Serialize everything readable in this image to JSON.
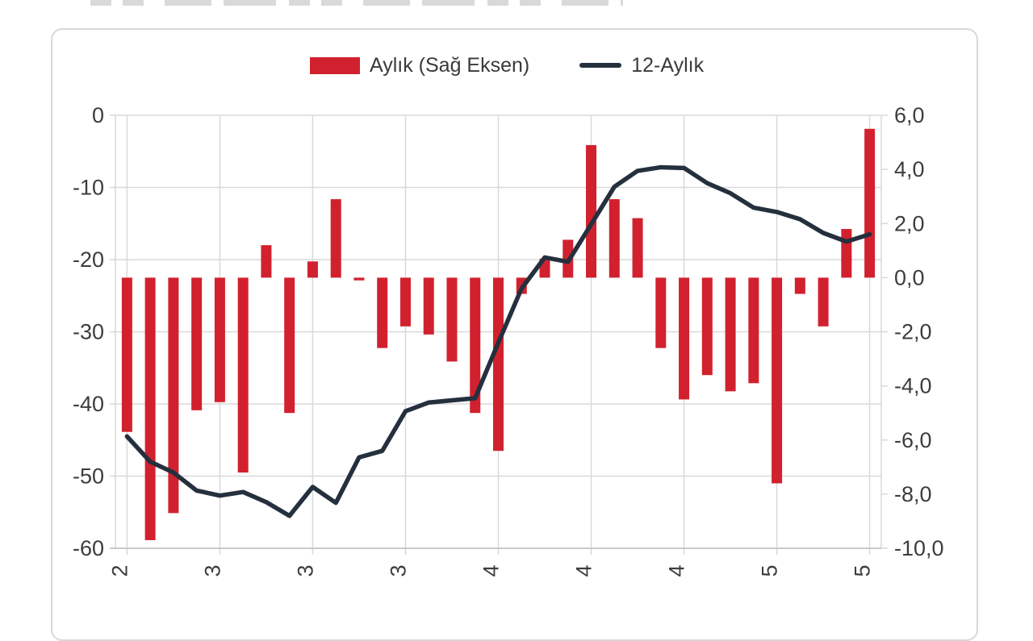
{
  "legend": {
    "bar_series_label": "Aylık (Sağ Eksen)",
    "line_series_label": "12-Aylık"
  },
  "colors": {
    "bar": "#d2212e",
    "line": "#25303e",
    "grid": "#d9d9d9",
    "axis_line": "#bfbfbf",
    "text": "#3d3d3d",
    "card_border": "#d8d8d8"
  },
  "chart_data": {
    "type": "bar+line",
    "months_count": 33,
    "title": "",
    "left_axis": {
      "ticks": [
        "0",
        "-10",
        "-20",
        "-30",
        "-40",
        "-50",
        "-60"
      ],
      "max": 0,
      "min": -60
    },
    "right_axis": {
      "ticks": [
        "6,0",
        "4,0",
        "2,0",
        "0,0",
        "-2,0",
        "-4,0",
        "-6,0",
        "-8,0",
        "-10,0"
      ],
      "max": 6,
      "min": -10
    },
    "x_axis": {
      "tick_every_n_bars": 4,
      "visible_tick_labels": [
        "2",
        "3",
        "3",
        "3",
        "4",
        "4",
        "4",
        "5",
        "5"
      ]
    },
    "series": [
      {
        "name": "Aylık (Sağ Eksen)",
        "type": "bar",
        "axis": "right",
        "values": [
          -5.7,
          -9.7,
          -8.7,
          -4.9,
          -4.6,
          -7.2,
          1.2,
          -5.0,
          0.6,
          2.9,
          -0.1,
          -2.6,
          -1.8,
          -2.1,
          -3.1,
          -5.0,
          -6.4,
          -0.6,
          0.7,
          1.4,
          4.9,
          2.9,
          2.2,
          -2.6,
          -4.5,
          -3.6,
          -4.2,
          -3.9,
          -7.6,
          -0.6,
          -1.8,
          1.8,
          5.5
        ]
      },
      {
        "name": "12-Aylık",
        "type": "line",
        "axis": "left",
        "values": [
          -44.5,
          -48.0,
          -49.5,
          -52.0,
          -52.7,
          -52.2,
          -53.6,
          -55.5,
          -51.5,
          -53.7,
          -47.4,
          -46.5,
          -41.0,
          -39.8,
          -39.5,
          -39.2,
          -31.5,
          -24.0,
          -19.7,
          -20.3,
          -15.1,
          -9.9,
          -7.7,
          -7.2,
          -7.3,
          -9.4,
          -10.8,
          -12.8,
          -13.4,
          -14.4,
          -16.3,
          -17.5,
          -16.5
        ]
      }
    ]
  }
}
